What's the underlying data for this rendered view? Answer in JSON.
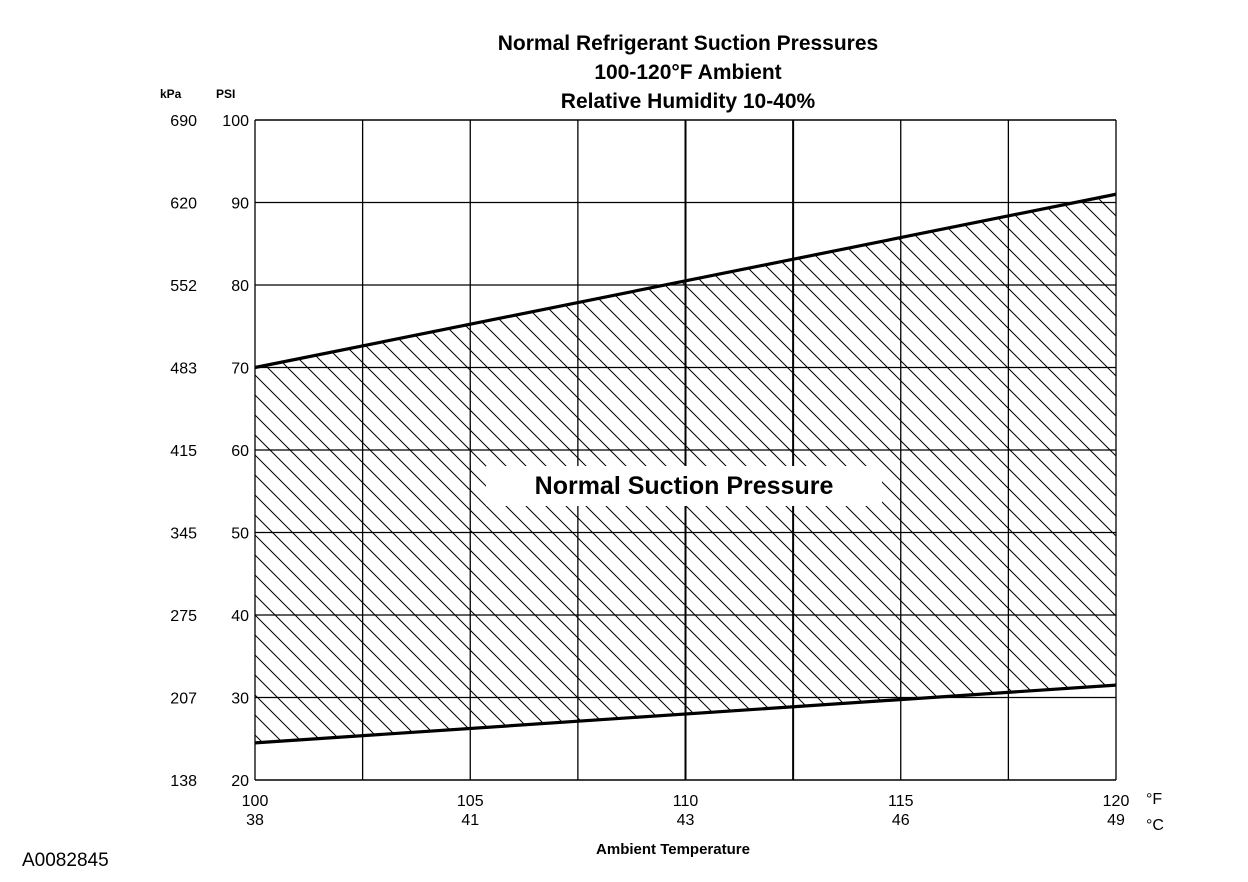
{
  "figure_id": "A0082845",
  "chart_data": {
    "type": "area",
    "title": [
      "Normal  Refrigerant  Suction  Pressures",
      "100-120°F Ambient",
      "Relative Humidity 10-40%"
    ],
    "xlabel": "Ambient Temperature",
    "x_unit_primary": "°F",
    "x_unit_secondary": "°C",
    "y_unit_primary": "PSI",
    "y_unit_secondary": "kPa",
    "xlim": [
      100,
      120
    ],
    "ylim": [
      20,
      100
    ],
    "x_ticks": [
      {
        "f": 100,
        "f_label": "100",
        "c_label": "38"
      },
      {
        "f": 105,
        "f_label": "105",
        "c_label": "41"
      },
      {
        "f": 110,
        "f_label": "110",
        "c_label": "43"
      },
      {
        "f": 115,
        "f_label": "115",
        "c_label": "46"
      },
      {
        "f": 120,
        "f_label": "120",
        "c_label": "49"
      }
    ],
    "y_ticks": [
      {
        "psi": 100,
        "psi_label": "100",
        "kpa_label": "690"
      },
      {
        "psi": 90,
        "psi_label": "90",
        "kpa_label": "620"
      },
      {
        "psi": 80,
        "psi_label": "80",
        "kpa_label": "552"
      },
      {
        "psi": 70,
        "psi_label": "70",
        "kpa_label": "483"
      },
      {
        "psi": 60,
        "psi_label": "60",
        "kpa_label": "415"
      },
      {
        "psi": 50,
        "psi_label": "50",
        "kpa_label": "345"
      },
      {
        "psi": 40,
        "psi_label": "40",
        "kpa_label": "275"
      },
      {
        "psi": 30,
        "psi_label": "30",
        "kpa_label": "207"
      },
      {
        "psi": 20,
        "psi_label": "20",
        "kpa_label": "138"
      }
    ],
    "x_gridlines": [
      100,
      102.5,
      105,
      107.5,
      110,
      112.5,
      115,
      117.5,
      120
    ],
    "grid": true,
    "upper_bound": {
      "x": [
        100,
        120
      ],
      "y": [
        70,
        91
      ]
    },
    "lower_bound": {
      "x": [
        100,
        120
      ],
      "y": [
        24.5,
        31.5
      ]
    },
    "region_label": "Normal Suction Pressure",
    "region_fill": "hatched",
    "line_color": "#000000"
  }
}
